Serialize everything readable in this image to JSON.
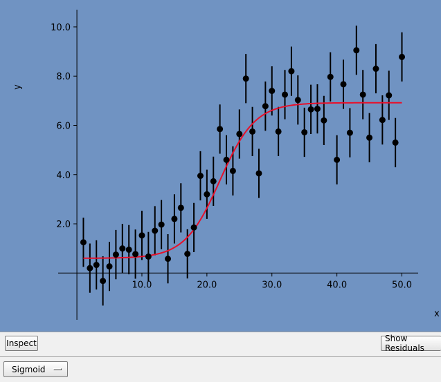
{
  "chart_data": {
    "type": "scatter",
    "xlabel": "x",
    "ylabel": "y",
    "xlim": [
      -1.5,
      52.5
    ],
    "ylim": [
      -1.9,
      10.7
    ],
    "x_ticks": [
      10.0,
      20.0,
      30.0,
      40.0,
      50.0
    ],
    "x_tick_labels": [
      "10.0",
      "20.0",
      "30.0",
      "40.0",
      "50.0"
    ],
    "y_ticks": [
      2.0,
      4.0,
      6.0,
      8.0,
      10.0
    ],
    "y_tick_labels": [
      "2.0",
      "4.0",
      "6.0",
      "8.0",
      "10.0"
    ],
    "grid": false,
    "error_bar": 1.0,
    "points": [
      [
        1,
        1.25
      ],
      [
        2,
        0.2
      ],
      [
        3,
        0.33
      ],
      [
        4,
        -0.32
      ],
      [
        5,
        0.27
      ],
      [
        6,
        0.75
      ],
      [
        7,
        1.0
      ],
      [
        8,
        0.95
      ],
      [
        9,
        0.77
      ],
      [
        10,
        1.53
      ],
      [
        11,
        0.67
      ],
      [
        12,
        1.72
      ],
      [
        13,
        1.97
      ],
      [
        14,
        0.58
      ],
      [
        15,
        2.2
      ],
      [
        16,
        2.65
      ],
      [
        17,
        0.78
      ],
      [
        18,
        1.85
      ],
      [
        19,
        3.95
      ],
      [
        20,
        3.2
      ],
      [
        21,
        3.73
      ],
      [
        22,
        5.85
      ],
      [
        23,
        4.6
      ],
      [
        24,
        4.15
      ],
      [
        25,
        5.65
      ],
      [
        26,
        7.9
      ],
      [
        27,
        5.75
      ],
      [
        28,
        4.05
      ],
      [
        29,
        6.78
      ],
      [
        30,
        7.4
      ],
      [
        31,
        5.75
      ],
      [
        32,
        7.25
      ],
      [
        33,
        8.2
      ],
      [
        34,
        7.03
      ],
      [
        35,
        5.72
      ],
      [
        36,
        6.65
      ],
      [
        37,
        6.67
      ],
      [
        38,
        6.2
      ],
      [
        39,
        7.97
      ],
      [
        40,
        4.6
      ],
      [
        41,
        7.67
      ],
      [
        42,
        5.7
      ],
      [
        43,
        9.05
      ],
      [
        44,
        7.25
      ],
      [
        45,
        5.5
      ],
      [
        46,
        8.3
      ],
      [
        47,
        6.22
      ],
      [
        48,
        7.22
      ],
      [
        49,
        5.3
      ],
      [
        50,
        8.78
      ]
    ],
    "fit": {
      "model": "sigmoid",
      "color": "#e8102a",
      "x_range": [
        1,
        50
      ],
      "lower": 0.6,
      "upper": 6.92,
      "midpoint": 22,
      "width": 2.7
    },
    "marker_color": "#000000",
    "background": "#7093c2"
  },
  "controls": {
    "inspect_label": "Inspect",
    "show_residuals_label": "Show Residuals",
    "model_select_value": "Sigmoid"
  }
}
